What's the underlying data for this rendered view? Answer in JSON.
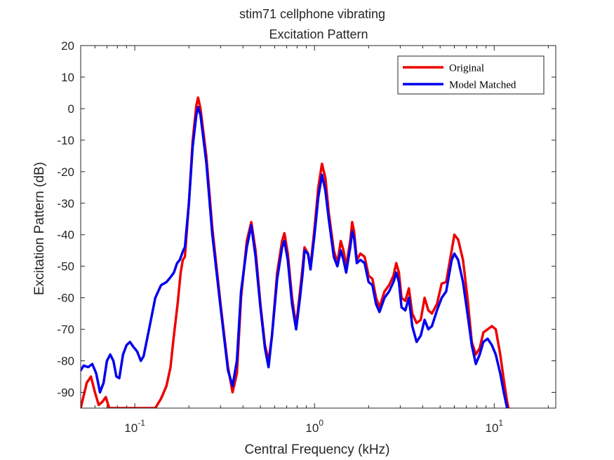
{
  "chart_data": {
    "type": "line",
    "title": "stim71 cellphone vibrating",
    "subtitle": "Excitation Pattern",
    "xlabel": "Central Frequency (kHz)",
    "ylabel": "Excitation Pattern (dB)",
    "xscale": "log",
    "xlim": [
      0.05,
      22
    ],
    "ylim": [
      -95,
      20
    ],
    "xticks": [
      0.1,
      1,
      10
    ],
    "xtick_labels": [
      {
        "base": "10",
        "exp": "-1"
      },
      {
        "base": "10",
        "exp": "0"
      },
      {
        "base": "10",
        "exp": "1"
      }
    ],
    "yticks": [
      20,
      10,
      0,
      -10,
      -20,
      -30,
      -40,
      -50,
      -60,
      -70,
      -80,
      -90
    ],
    "ytick_labels": [
      "20",
      "10",
      "0",
      "-10",
      "-20",
      "-30",
      "-40",
      "-50",
      "-60",
      "-70",
      "-80",
      "-90"
    ],
    "grid": false,
    "legend_position": "top-right",
    "colors": {
      "original": "#ee0000",
      "model": "#0000ee",
      "axis": "#262626"
    },
    "series": [
      {
        "name": "Original",
        "color": "#ee0000",
        "points": [
          [
            0.05,
            -95
          ],
          [
            0.054,
            -87
          ],
          [
            0.057,
            -85
          ],
          [
            0.06,
            -90
          ],
          [
            0.063,
            -94
          ],
          [
            0.066,
            -93
          ],
          [
            0.069,
            -91.5
          ],
          [
            0.072,
            -95
          ],
          [
            0.13,
            -95
          ],
          [
            0.14,
            -92
          ],
          [
            0.15,
            -88
          ],
          [
            0.158,
            -82
          ],
          [
            0.165,
            -72
          ],
          [
            0.173,
            -62
          ],
          [
            0.18,
            -52
          ],
          [
            0.185,
            -48
          ],
          [
            0.19,
            -47
          ],
          [
            0.2,
            -30
          ],
          [
            0.21,
            -10
          ],
          [
            0.22,
            1
          ],
          [
            0.225,
            3.5
          ],
          [
            0.232,
            0
          ],
          [
            0.25,
            -15
          ],
          [
            0.27,
            -38
          ],
          [
            0.3,
            -62
          ],
          [
            0.33,
            -82
          ],
          [
            0.35,
            -90
          ],
          [
            0.37,
            -84
          ],
          [
            0.39,
            -60
          ],
          [
            0.42,
            -42
          ],
          [
            0.445,
            -36
          ],
          [
            0.47,
            -45
          ],
          [
            0.5,
            -62
          ],
          [
            0.53,
            -75
          ],
          [
            0.555,
            -80
          ],
          [
            0.58,
            -72
          ],
          [
            0.62,
            -52
          ],
          [
            0.66,
            -42
          ],
          [
            0.68,
            -39.5
          ],
          [
            0.71,
            -46
          ],
          [
            0.75,
            -60
          ],
          [
            0.79,
            -69
          ],
          [
            0.83,
            -58
          ],
          [
            0.86,
            -50
          ],
          [
            0.88,
            -44
          ],
          [
            0.92,
            -46
          ],
          [
            0.95,
            -50
          ],
          [
            1.0,
            -38
          ],
          [
            1.05,
            -25
          ],
          [
            1.1,
            -17.5
          ],
          [
            1.15,
            -22
          ],
          [
            1.2,
            -33
          ],
          [
            1.28,
            -45
          ],
          [
            1.34,
            -49
          ],
          [
            1.4,
            -42
          ],
          [
            1.45,
            -45
          ],
          [
            1.5,
            -50
          ],
          [
            1.58,
            -42
          ],
          [
            1.62,
            -36
          ],
          [
            1.66,
            -39
          ],
          [
            1.72,
            -48
          ],
          [
            1.8,
            -46
          ],
          [
            1.9,
            -47
          ],
          [
            2.0,
            -53
          ],
          [
            2.1,
            -54
          ],
          [
            2.2,
            -60
          ],
          [
            2.3,
            -63
          ],
          [
            2.45,
            -58
          ],
          [
            2.6,
            -56
          ],
          [
            2.75,
            -53
          ],
          [
            2.85,
            -49
          ],
          [
            2.95,
            -52
          ],
          [
            3.05,
            -60
          ],
          [
            3.2,
            -61
          ],
          [
            3.35,
            -57
          ],
          [
            3.5,
            -65
          ],
          [
            3.7,
            -68
          ],
          [
            3.9,
            -67
          ],
          [
            4.1,
            -60
          ],
          [
            4.3,
            -64
          ],
          [
            4.5,
            -65
          ],
          [
            4.8,
            -62
          ],
          [
            5.1,
            -55.5
          ],
          [
            5.4,
            -55
          ],
          [
            5.8,
            -45
          ],
          [
            6.0,
            -40
          ],
          [
            6.3,
            -41.5
          ],
          [
            6.7,
            -48
          ],
          [
            7.1,
            -60
          ],
          [
            7.5,
            -74
          ],
          [
            7.9,
            -78
          ],
          [
            8.3,
            -76
          ],
          [
            8.7,
            -71
          ],
          [
            9.2,
            -70
          ],
          [
            9.7,
            -69
          ],
          [
            10.2,
            -70
          ],
          [
            10.8,
            -78
          ],
          [
            11.3,
            -86
          ],
          [
            11.8,
            -93
          ],
          [
            12.0,
            -95
          ]
        ]
      },
      {
        "name": "Model Matched",
        "color": "#0000ee",
        "points": [
          [
            0.05,
            -83
          ],
          [
            0.052,
            -81.5
          ],
          [
            0.055,
            -82
          ],
          [
            0.058,
            -81
          ],
          [
            0.061,
            -84
          ],
          [
            0.064,
            -90
          ],
          [
            0.067,
            -87
          ],
          [
            0.07,
            -80
          ],
          [
            0.073,
            -78
          ],
          [
            0.076,
            -80
          ],
          [
            0.079,
            -85
          ],
          [
            0.082,
            -85.5
          ],
          [
            0.086,
            -78
          ],
          [
            0.09,
            -75
          ],
          [
            0.094,
            -74
          ],
          [
            0.098,
            -75.5
          ],
          [
            0.103,
            -77
          ],
          [
            0.108,
            -80
          ],
          [
            0.112,
            -78.5
          ],
          [
            0.12,
            -70
          ],
          [
            0.13,
            -60
          ],
          [
            0.14,
            -56
          ],
          [
            0.15,
            -55
          ],
          [
            0.158,
            -53.5
          ],
          [
            0.165,
            -52
          ],
          [
            0.172,
            -49
          ],
          [
            0.178,
            -48
          ],
          [
            0.186,
            -45
          ],
          [
            0.19,
            -44
          ],
          [
            0.2,
            -30
          ],
          [
            0.21,
            -12
          ],
          [
            0.22,
            -2
          ],
          [
            0.225,
            0.5
          ],
          [
            0.232,
            -2
          ],
          [
            0.25,
            -17
          ],
          [
            0.27,
            -40
          ],
          [
            0.3,
            -63
          ],
          [
            0.33,
            -83
          ],
          [
            0.35,
            -88
          ],
          [
            0.37,
            -80
          ],
          [
            0.39,
            -58
          ],
          [
            0.42,
            -44
          ],
          [
            0.445,
            -37
          ],
          [
            0.47,
            -47
          ],
          [
            0.5,
            -63
          ],
          [
            0.53,
            -76
          ],
          [
            0.555,
            -82
          ],
          [
            0.58,
            -72
          ],
          [
            0.62,
            -54
          ],
          [
            0.66,
            -44
          ],
          [
            0.68,
            -42
          ],
          [
            0.71,
            -48
          ],
          [
            0.75,
            -62
          ],
          [
            0.79,
            -70
          ],
          [
            0.83,
            -60
          ],
          [
            0.86,
            -52
          ],
          [
            0.88,
            -45
          ],
          [
            0.92,
            -46
          ],
          [
            0.95,
            -51
          ],
          [
            1.0,
            -40
          ],
          [
            1.05,
            -28
          ],
          [
            1.1,
            -21
          ],
          [
            1.15,
            -26
          ],
          [
            1.2,
            -35
          ],
          [
            1.28,
            -47
          ],
          [
            1.34,
            -50
          ],
          [
            1.4,
            -45
          ],
          [
            1.45,
            -48
          ],
          [
            1.5,
            -52
          ],
          [
            1.58,
            -44
          ],
          [
            1.62,
            -39
          ],
          [
            1.66,
            -41
          ],
          [
            1.72,
            -49
          ],
          [
            1.8,
            -48
          ],
          [
            1.9,
            -49
          ],
          [
            2.0,
            -55
          ],
          [
            2.1,
            -56
          ],
          [
            2.2,
            -62
          ],
          [
            2.3,
            -64.5
          ],
          [
            2.45,
            -60
          ],
          [
            2.6,
            -58
          ],
          [
            2.75,
            -55
          ],
          [
            2.85,
            -52
          ],
          [
            2.95,
            -55
          ],
          [
            3.05,
            -63
          ],
          [
            3.2,
            -64
          ],
          [
            3.35,
            -60
          ],
          [
            3.5,
            -69
          ],
          [
            3.7,
            -74
          ],
          [
            3.9,
            -72
          ],
          [
            4.1,
            -67
          ],
          [
            4.3,
            -70
          ],
          [
            4.5,
            -69
          ],
          [
            4.8,
            -64
          ],
          [
            5.1,
            -60
          ],
          [
            5.4,
            -58
          ],
          [
            5.8,
            -48
          ],
          [
            6.0,
            -46
          ],
          [
            6.3,
            -48
          ],
          [
            6.7,
            -55
          ],
          [
            7.1,
            -65
          ],
          [
            7.5,
            -75
          ],
          [
            7.9,
            -81
          ],
          [
            8.3,
            -78
          ],
          [
            8.7,
            -74
          ],
          [
            9.2,
            -73
          ],
          [
            9.7,
            -75
          ],
          [
            10.2,
            -78
          ],
          [
            10.8,
            -84
          ],
          [
            11.3,
            -90
          ],
          [
            11.8,
            -95
          ]
        ]
      }
    ]
  }
}
